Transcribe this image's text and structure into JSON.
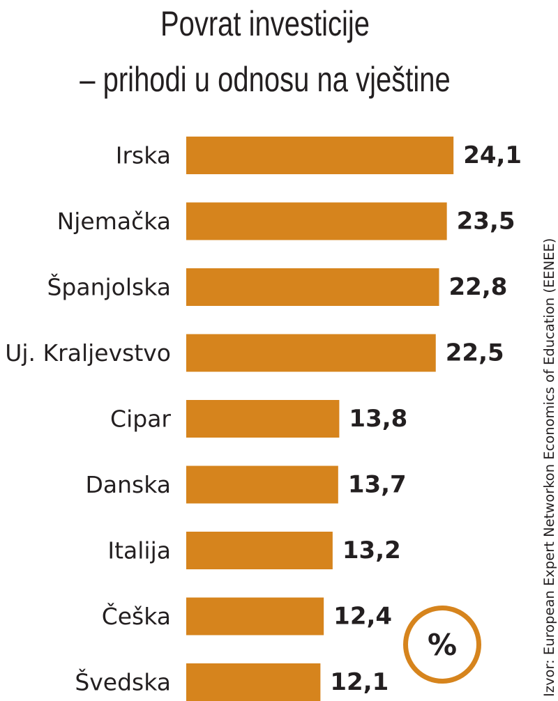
{
  "title_line1": "Povrat investicije",
  "title_line2": "– prihodi u odnosu na vještine",
  "source": "Izvor: European Expert Networkon Economics of Education (EENEE)",
  "unit_badge": "%",
  "colors": {
    "bar": "#d6841d",
    "text": "#231f20"
  },
  "chart_data": {
    "type": "bar",
    "orientation": "horizontal",
    "categories": [
      "Irska",
      "Njemačka",
      "Španjolska",
      "Uj. Kraljevstvo",
      "Cipar",
      "Danska",
      "Italija",
      "Češka",
      "Švedska"
    ],
    "values": [
      24.1,
      23.5,
      22.8,
      22.5,
      13.8,
      13.7,
      13.2,
      12.4,
      12.1
    ],
    "value_labels": [
      "24,1",
      "23,5",
      "22,8",
      "22,5",
      "13,8",
      "13,7",
      "13,2",
      "12,4",
      "12,1"
    ],
    "title": "Povrat investicije – prihodi u odnosu na vještine",
    "xlabel": "",
    "ylabel": "",
    "unit": "%",
    "grid": false,
    "legend": "none"
  }
}
